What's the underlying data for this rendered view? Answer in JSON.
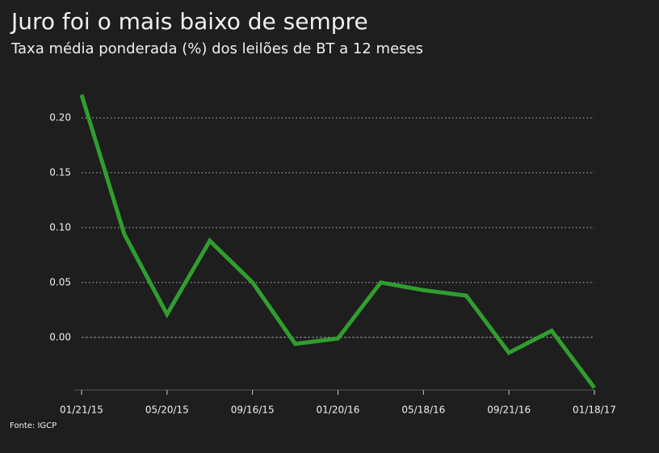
{
  "chart_data": {
    "type": "line",
    "title": "Juro foi o mais baixo de sempre",
    "subtitle": "Taxa média ponderada (%) dos leilões de BT a 12 meses",
    "source": "Fonte: IGCP",
    "categories": [
      "01/21/15",
      null,
      "05/20/15",
      null,
      "09/16/15",
      null,
      "01/20/16",
      null,
      "05/18/16",
      null,
      "09/21/16",
      null,
      "01/18/17"
    ],
    "series": [
      {
        "name": "Taxa",
        "color": "#2f9e2f",
        "values": [
          0.221,
          0.094,
          0.021,
          0.088,
          0.05,
          -0.006,
          -0.001,
          0.05,
          0.043,
          0.038,
          -0.014,
          0.006,
          -0.046
        ]
      }
    ],
    "ylim": [
      -0.048,
      0.225
    ],
    "yticks": [
      {
        "value": 0,
        "label": "0.00"
      },
      0.05,
      {
        "value": 0.1,
        "label": "0.10"
      },
      0.15,
      {
        "value": 0.2,
        "label": "0.20"
      }
    ],
    "grid": true
  }
}
